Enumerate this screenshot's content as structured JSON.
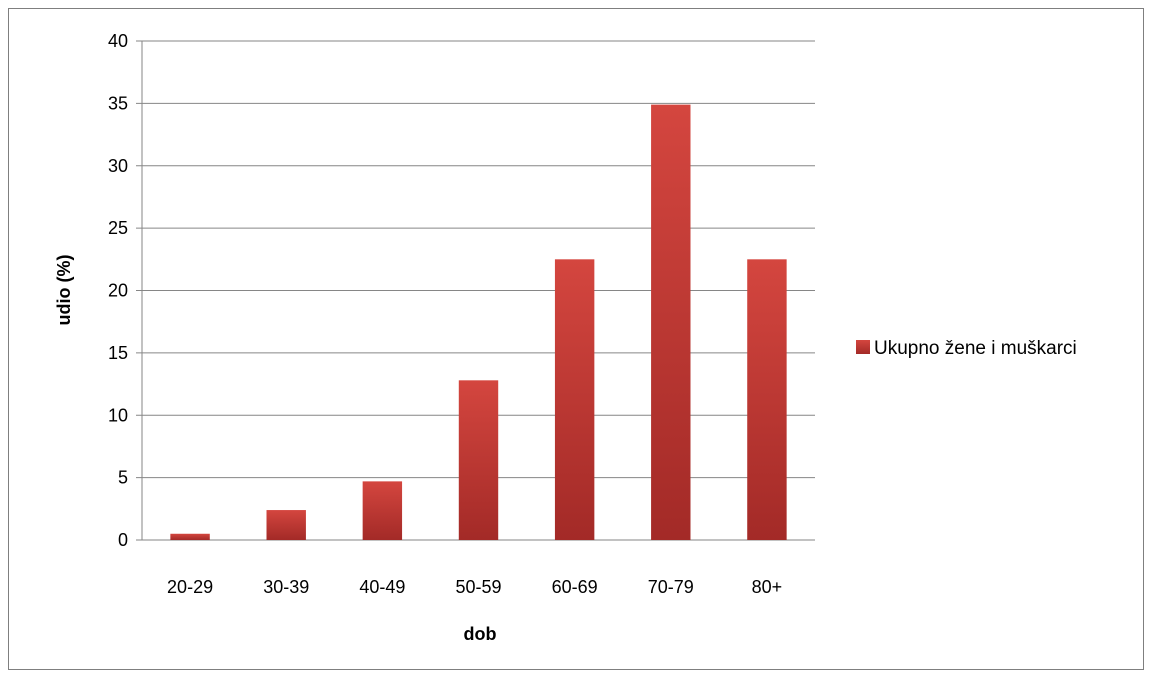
{
  "chart_data": {
    "type": "bar",
    "categories": [
      "20-29",
      "30-39",
      "40-49",
      "50-59",
      "60-69",
      "70-79",
      "80+"
    ],
    "series": [
      {
        "name": "Ukupno žene i muškarci",
        "values": [
          0.5,
          2.4,
          4.7,
          12.8,
          22.5,
          34.9,
          22.5
        ],
        "color": "#c0392f"
      }
    ],
    "xlabel": "dob",
    "ylabel": "udio (%)",
    "ylim": [
      0,
      40
    ],
    "yticks": [
      0,
      5,
      10,
      15,
      20,
      25,
      30,
      35,
      40
    ],
    "grid": true,
    "legend": "right"
  }
}
